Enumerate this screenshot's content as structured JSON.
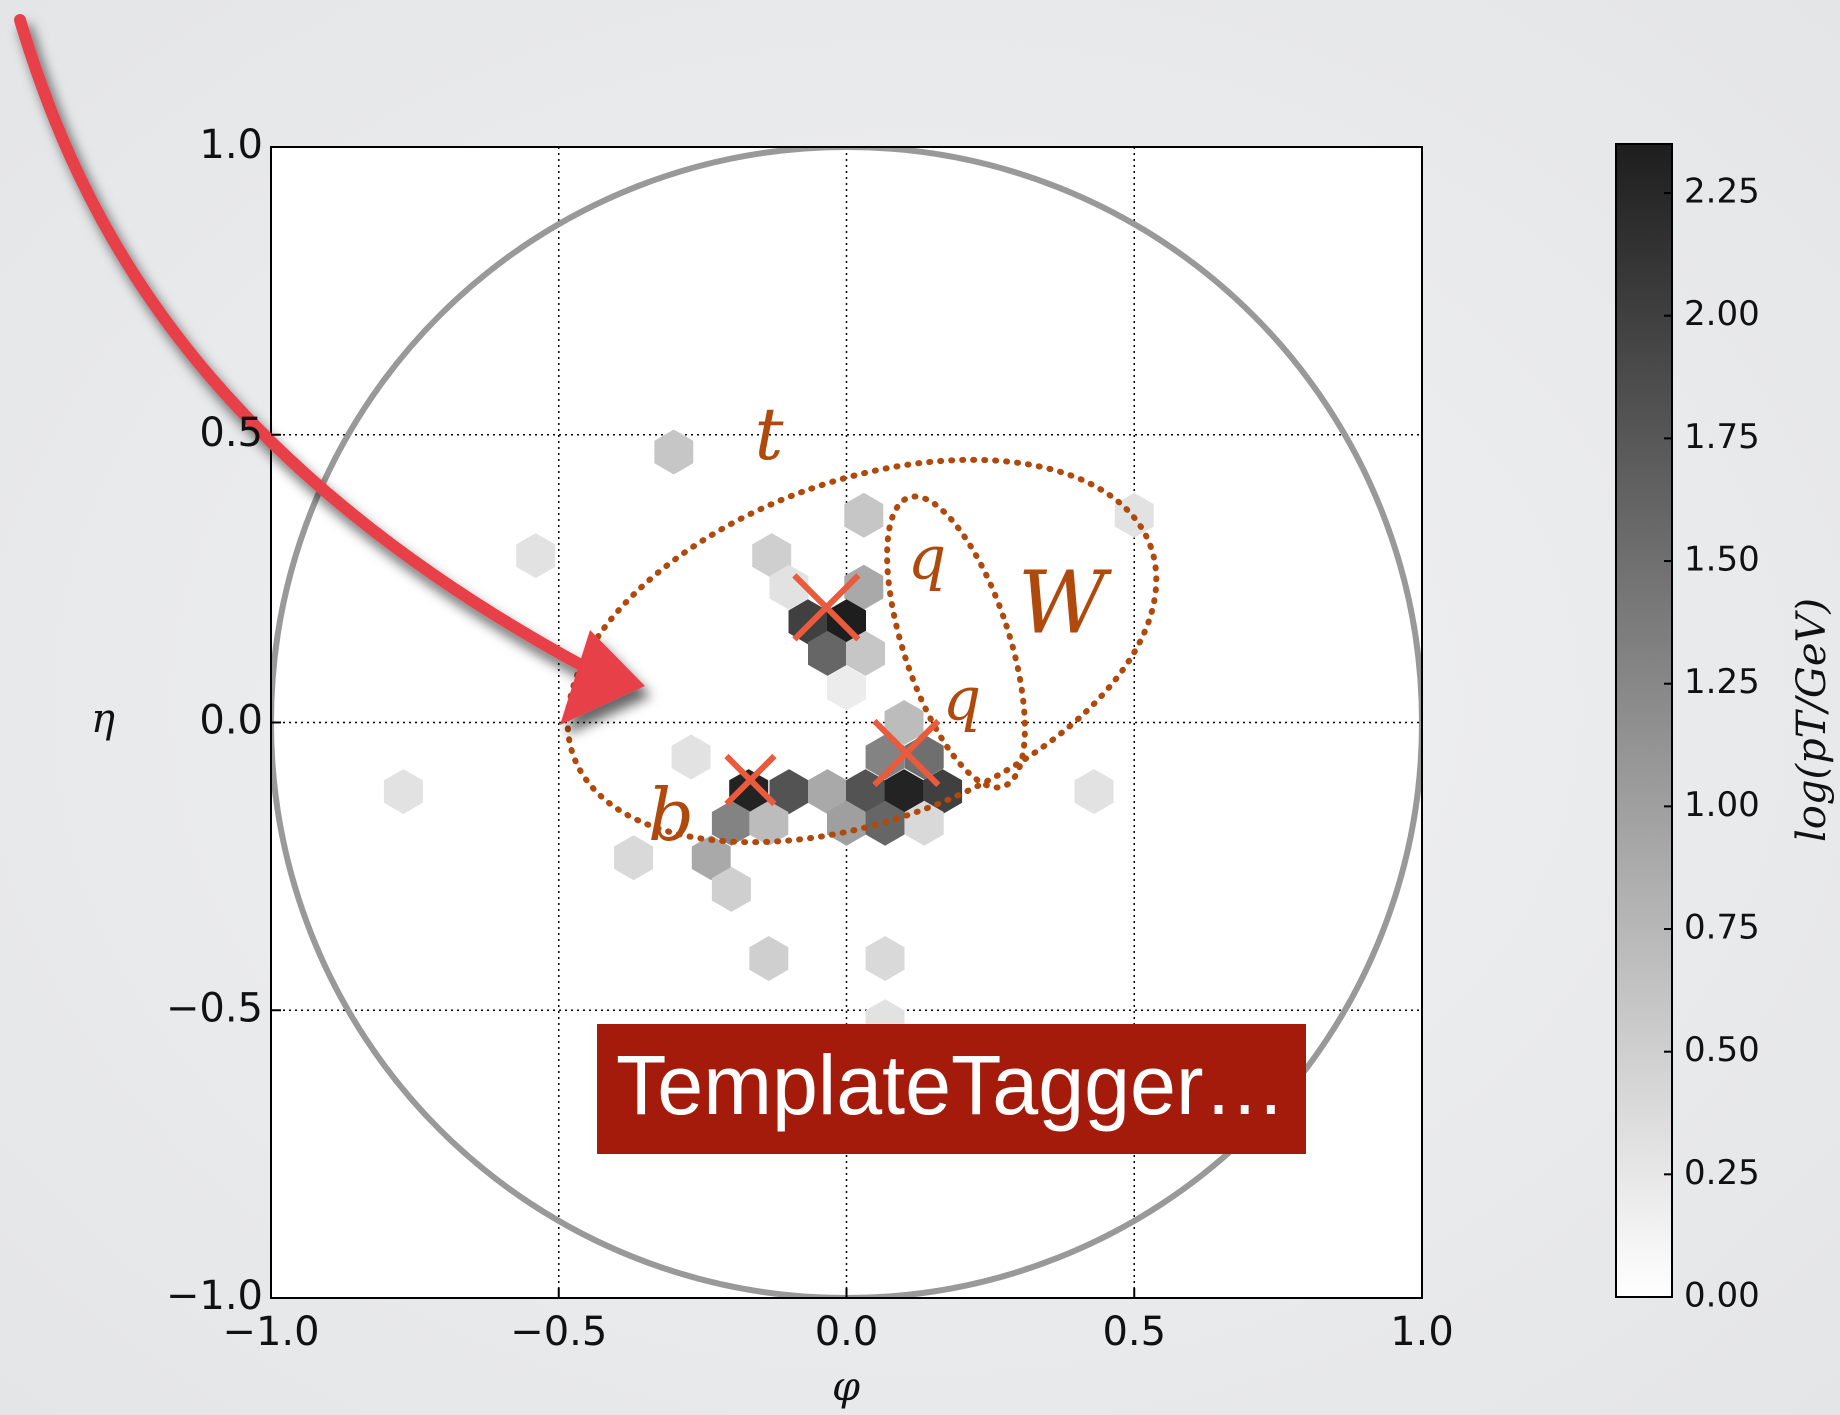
{
  "chart_data": {
    "type": "hexbin",
    "xlabel": "φ",
    "ylabel": "η",
    "colorbar_label": "log(pT/GeV)",
    "xlim": [
      -1,
      1
    ],
    "ylim": [
      -1,
      1
    ],
    "xticks": [
      {
        "value": -1,
        "label": "−1.0"
      },
      {
        "value": -0.5,
        "label": "−0.5"
      },
      {
        "value": 0,
        "label": "0.0"
      },
      {
        "value": 0.5,
        "label": "0.5"
      },
      {
        "value": 1,
        "label": "1.0"
      }
    ],
    "yticks": [
      {
        "value": -1,
        "label": "−1.0"
      },
      {
        "value": -0.5,
        "label": "−0.5"
      },
      {
        "value": 0,
        "label": "0.0"
      },
      {
        "value": 0.5,
        "label": "0.5"
      },
      {
        "value": 1,
        "label": "1.0"
      }
    ],
    "clim": [
      0,
      2.35
    ],
    "cticks": [
      {
        "value": 0,
        "label": "0.00"
      },
      {
        "value": 0.25,
        "label": "0.25"
      },
      {
        "value": 0.5,
        "label": "0.50"
      },
      {
        "value": 0.75,
        "label": "0.75"
      },
      {
        "value": 1,
        "label": "1.00"
      },
      {
        "value": 1.25,
        "label": "1.25"
      },
      {
        "value": 1.5,
        "label": "1.50"
      },
      {
        "value": 1.75,
        "label": "1.75"
      },
      {
        "value": 2,
        "label": "2.00"
      },
      {
        "value": 2.25,
        "label": "2.25"
      }
    ],
    "colormap": [
      "#ffffff",
      "#1e1e1e"
    ],
    "grid": true,
    "circle_radius": 1,
    "x": [
      -0.3,
      -0.54,
      -0.77,
      0.03,
      -0.13,
      0.5,
      -0.1,
      0.03,
      -0.067,
      0.0,
      -0.033,
      0.033,
      0.0,
      0.1,
      -0.27,
      0.067,
      0.135,
      -0.17,
      -0.1,
      -0.033,
      0.033,
      0.1,
      0.167,
      0.43,
      -0.2,
      -0.135,
      0.0,
      0.067,
      0.135,
      -0.235,
      -0.37,
      -0.2,
      -0.135,
      0.067,
      0.067
    ],
    "y": [
      0.47,
      0.29,
      -0.12,
      0.36,
      0.29,
      0.36,
      0.235,
      0.235,
      0.175,
      0.175,
      0.12,
      0.12,
      0.06,
      0.0,
      -0.06,
      -0.06,
      -0.06,
      -0.12,
      -0.12,
      -0.12,
      -0.12,
      -0.12,
      -0.12,
      -0.12,
      -0.175,
      -0.175,
      -0.175,
      -0.175,
      -0.175,
      -0.235,
      -0.235,
      -0.29,
      -0.41,
      -0.41,
      -0.52
    ],
    "values": [
      0.6,
      0.3,
      0.3,
      0.6,
      0.5,
      0.3,
      0.3,
      0.9,
      2.0,
      2.35,
      1.6,
      0.6,
      0.2,
      0.7,
      0.3,
      1.3,
      1.5,
      2.3,
      1.8,
      0.9,
      1.8,
      2.3,
      2.0,
      0.3,
      1.3,
      0.7,
      1.0,
      1.6,
      0.4,
      0.9,
      0.4,
      0.5,
      0.5,
      0.4,
      0.3
    ],
    "subjets": {
      "x": [
        -0.035,
        -0.167,
        0.104
      ],
      "y": [
        0.2,
        -0.1,
        -0.053
      ]
    },
    "annotations": [
      {
        "text": "t"
      },
      {
        "text": "q"
      },
      {
        "text": "W"
      },
      {
        "text": "q"
      },
      {
        "text": "b"
      },
      {
        "text": "TemplateTagger…"
      }
    ]
  }
}
